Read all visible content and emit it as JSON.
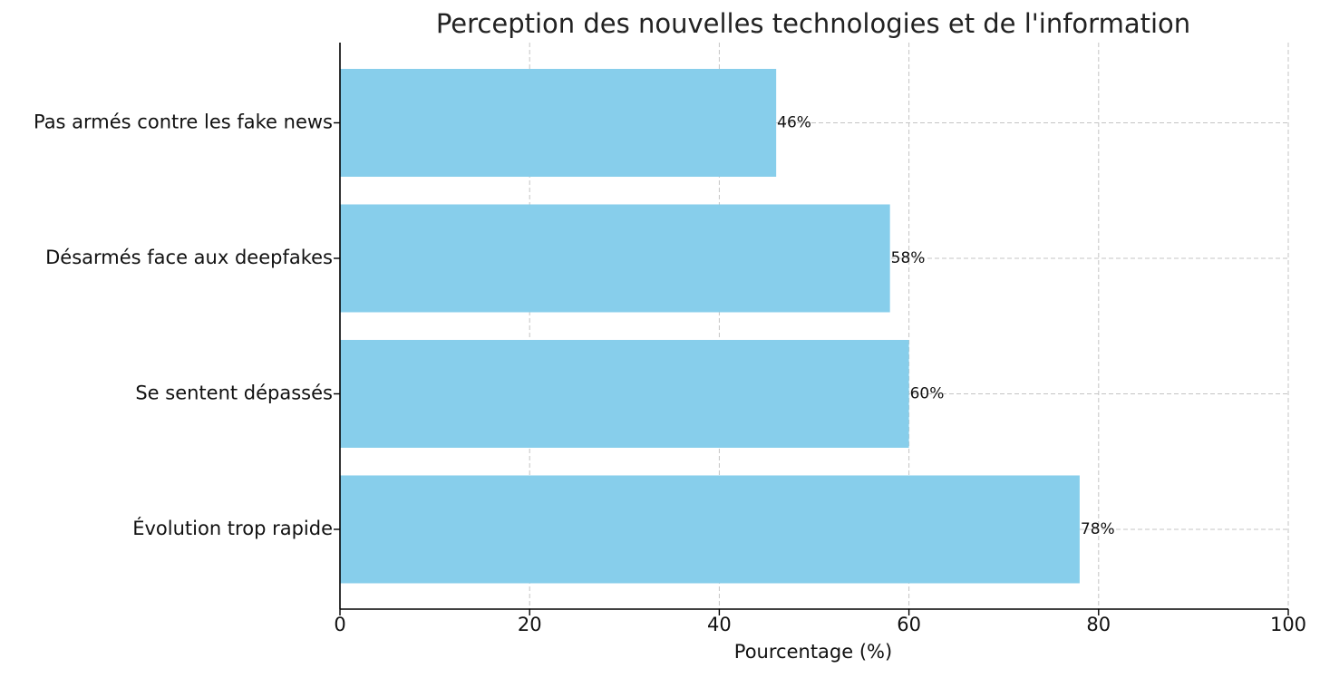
{
  "chart_data": {
    "type": "bar",
    "orientation": "horizontal",
    "title": "Perception des nouvelles technologies et de l'information",
    "xlabel": "Pourcentage (%)",
    "ylabel": "",
    "categories": [
      "Pas armés contre les fake news",
      "Désarmés face aux deepfakes",
      "Se sentent dépassés",
      "Évolution trop rapide"
    ],
    "values": [
      46,
      58,
      60,
      78
    ],
    "data_labels": [
      "46%",
      "58%",
      "60%",
      "78%"
    ],
    "xlim": [
      0,
      100
    ],
    "xticks": [
      0,
      20,
      40,
      60,
      80,
      100
    ],
    "xtick_labels": [
      "0",
      "20",
      "40",
      "60",
      "80",
      "100"
    ],
    "grid": true,
    "bar_color": "#87CEEB"
  }
}
